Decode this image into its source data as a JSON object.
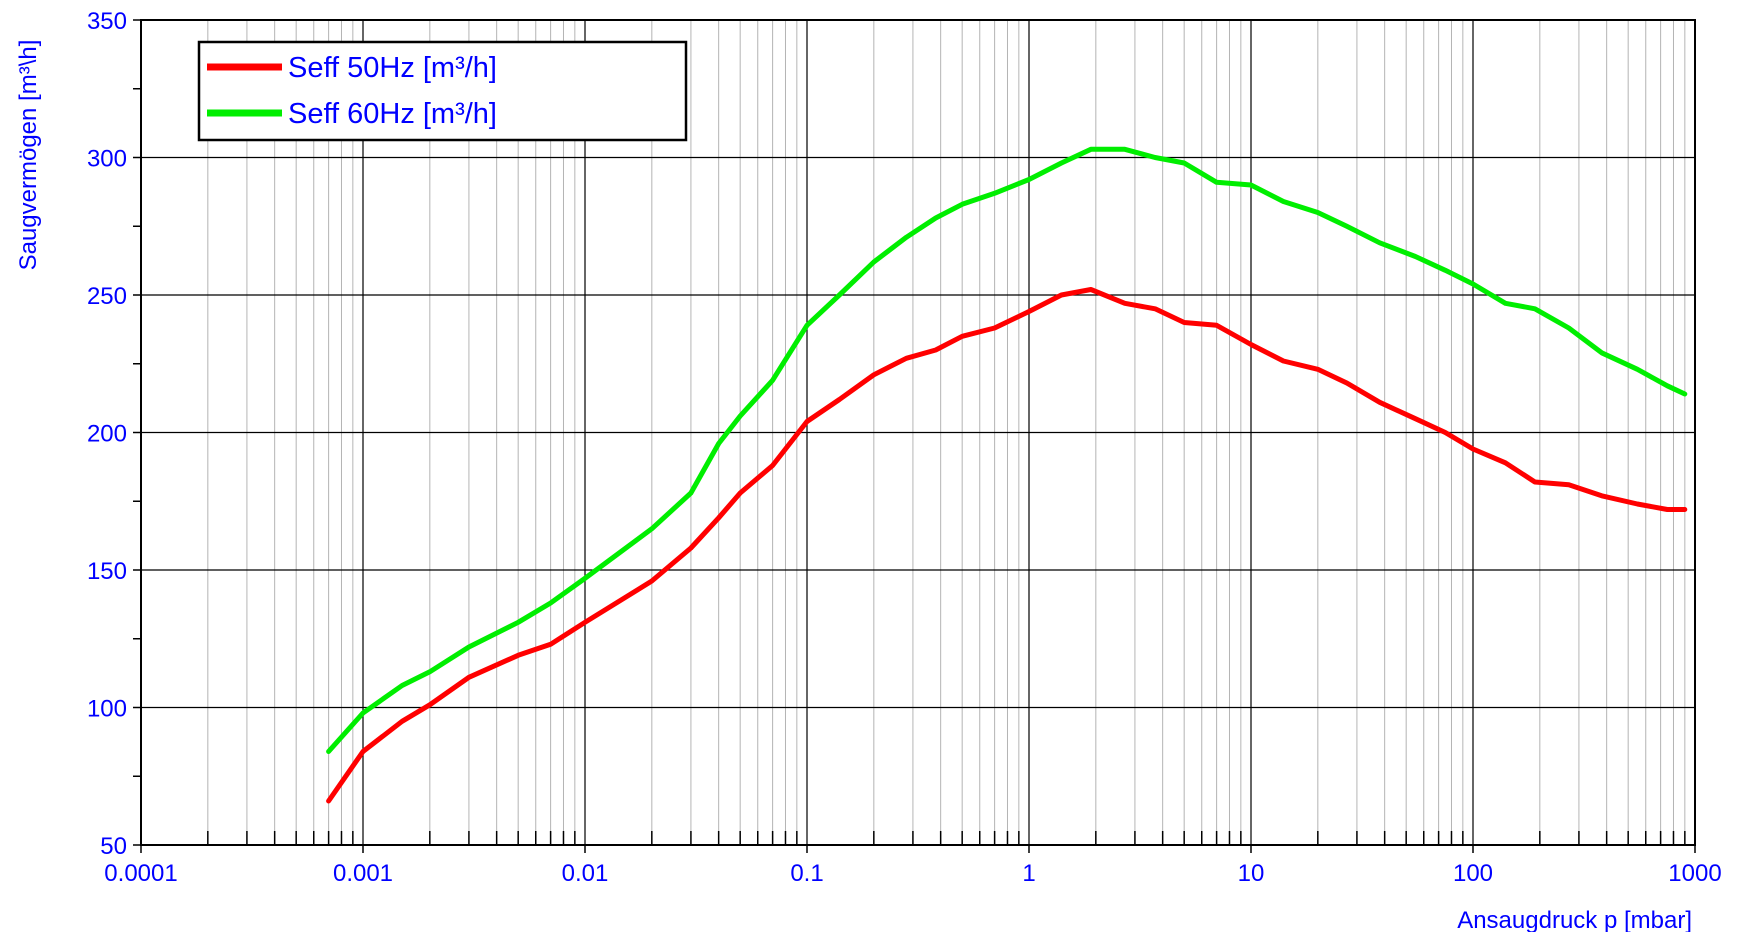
{
  "chart_data": {
    "type": "line",
    "xlabel": "Ansaugdruck p [mbar]",
    "ylabel": "Saugvermögen [m³\\h]",
    "xscale": "log",
    "xlim": [
      0.0001,
      1000
    ],
    "ylim": [
      50,
      350
    ],
    "x_ticks": [
      0.0001,
      0.001,
      0.01,
      0.1,
      1,
      10,
      100,
      1000
    ],
    "x_tick_labels": [
      "0.0001",
      "0.001",
      "0.01",
      "0.1",
      "1",
      "10",
      "100",
      "1000"
    ],
    "y_ticks": [
      50,
      100,
      150,
      200,
      250,
      300,
      350
    ],
    "y_tick_labels": [
      "50",
      "100",
      "150",
      "200",
      "250",
      "300",
      "350"
    ],
    "grid": true,
    "legend_position": "top-left",
    "series": [
      {
        "name": "Seff 50Hz [m³/h]",
        "color": "#ff0000",
        "x": [
          0.0007,
          0.001,
          0.0015,
          0.002,
          0.003,
          0.005,
          0.007,
          0.01,
          0.02,
          0.03,
          0.04,
          0.05,
          0.07,
          0.1,
          0.14,
          0.2,
          0.28,
          0.38,
          0.5,
          0.7,
          1,
          1.4,
          1.9,
          2.7,
          3.7,
          5,
          7,
          10,
          14,
          20,
          27,
          38,
          55,
          75,
          100,
          140,
          190,
          270,
          380,
          550,
          750,
          900
        ],
        "y": [
          66,
          84,
          95,
          101,
          111,
          119,
          123,
          131,
          146,
          158,
          169,
          178,
          188,
          204,
          212,
          221,
          227,
          230,
          235,
          238,
          244,
          250,
          252,
          247,
          245,
          240,
          239,
          232,
          226,
          223,
          218,
          211,
          205,
          200,
          194,
          189,
          182,
          181,
          177,
          174,
          172,
          172
        ]
      },
      {
        "name": "Seff 60Hz [m³/h]",
        "color": "#00ee00",
        "x": [
          0.0007,
          0.001,
          0.0015,
          0.002,
          0.003,
          0.005,
          0.007,
          0.01,
          0.02,
          0.03,
          0.04,
          0.05,
          0.07,
          0.1,
          0.14,
          0.2,
          0.28,
          0.38,
          0.5,
          0.7,
          1,
          1.4,
          1.9,
          2.7,
          3.7,
          5,
          7,
          10,
          14,
          20,
          27,
          38,
          55,
          75,
          100,
          140,
          190,
          270,
          380,
          550,
          750,
          900
        ],
        "y": [
          84,
          98,
          108,
          113,
          122,
          131,
          138,
          147,
          165,
          178,
          196,
          206,
          219,
          239,
          250,
          262,
          271,
          278,
          283,
          287,
          292,
          298,
          303,
          303,
          300,
          298,
          291,
          290,
          284,
          280,
          275,
          269,
          264,
          259,
          254,
          247,
          245,
          238,
          229,
          223,
          217,
          214
        ]
      }
    ]
  }
}
